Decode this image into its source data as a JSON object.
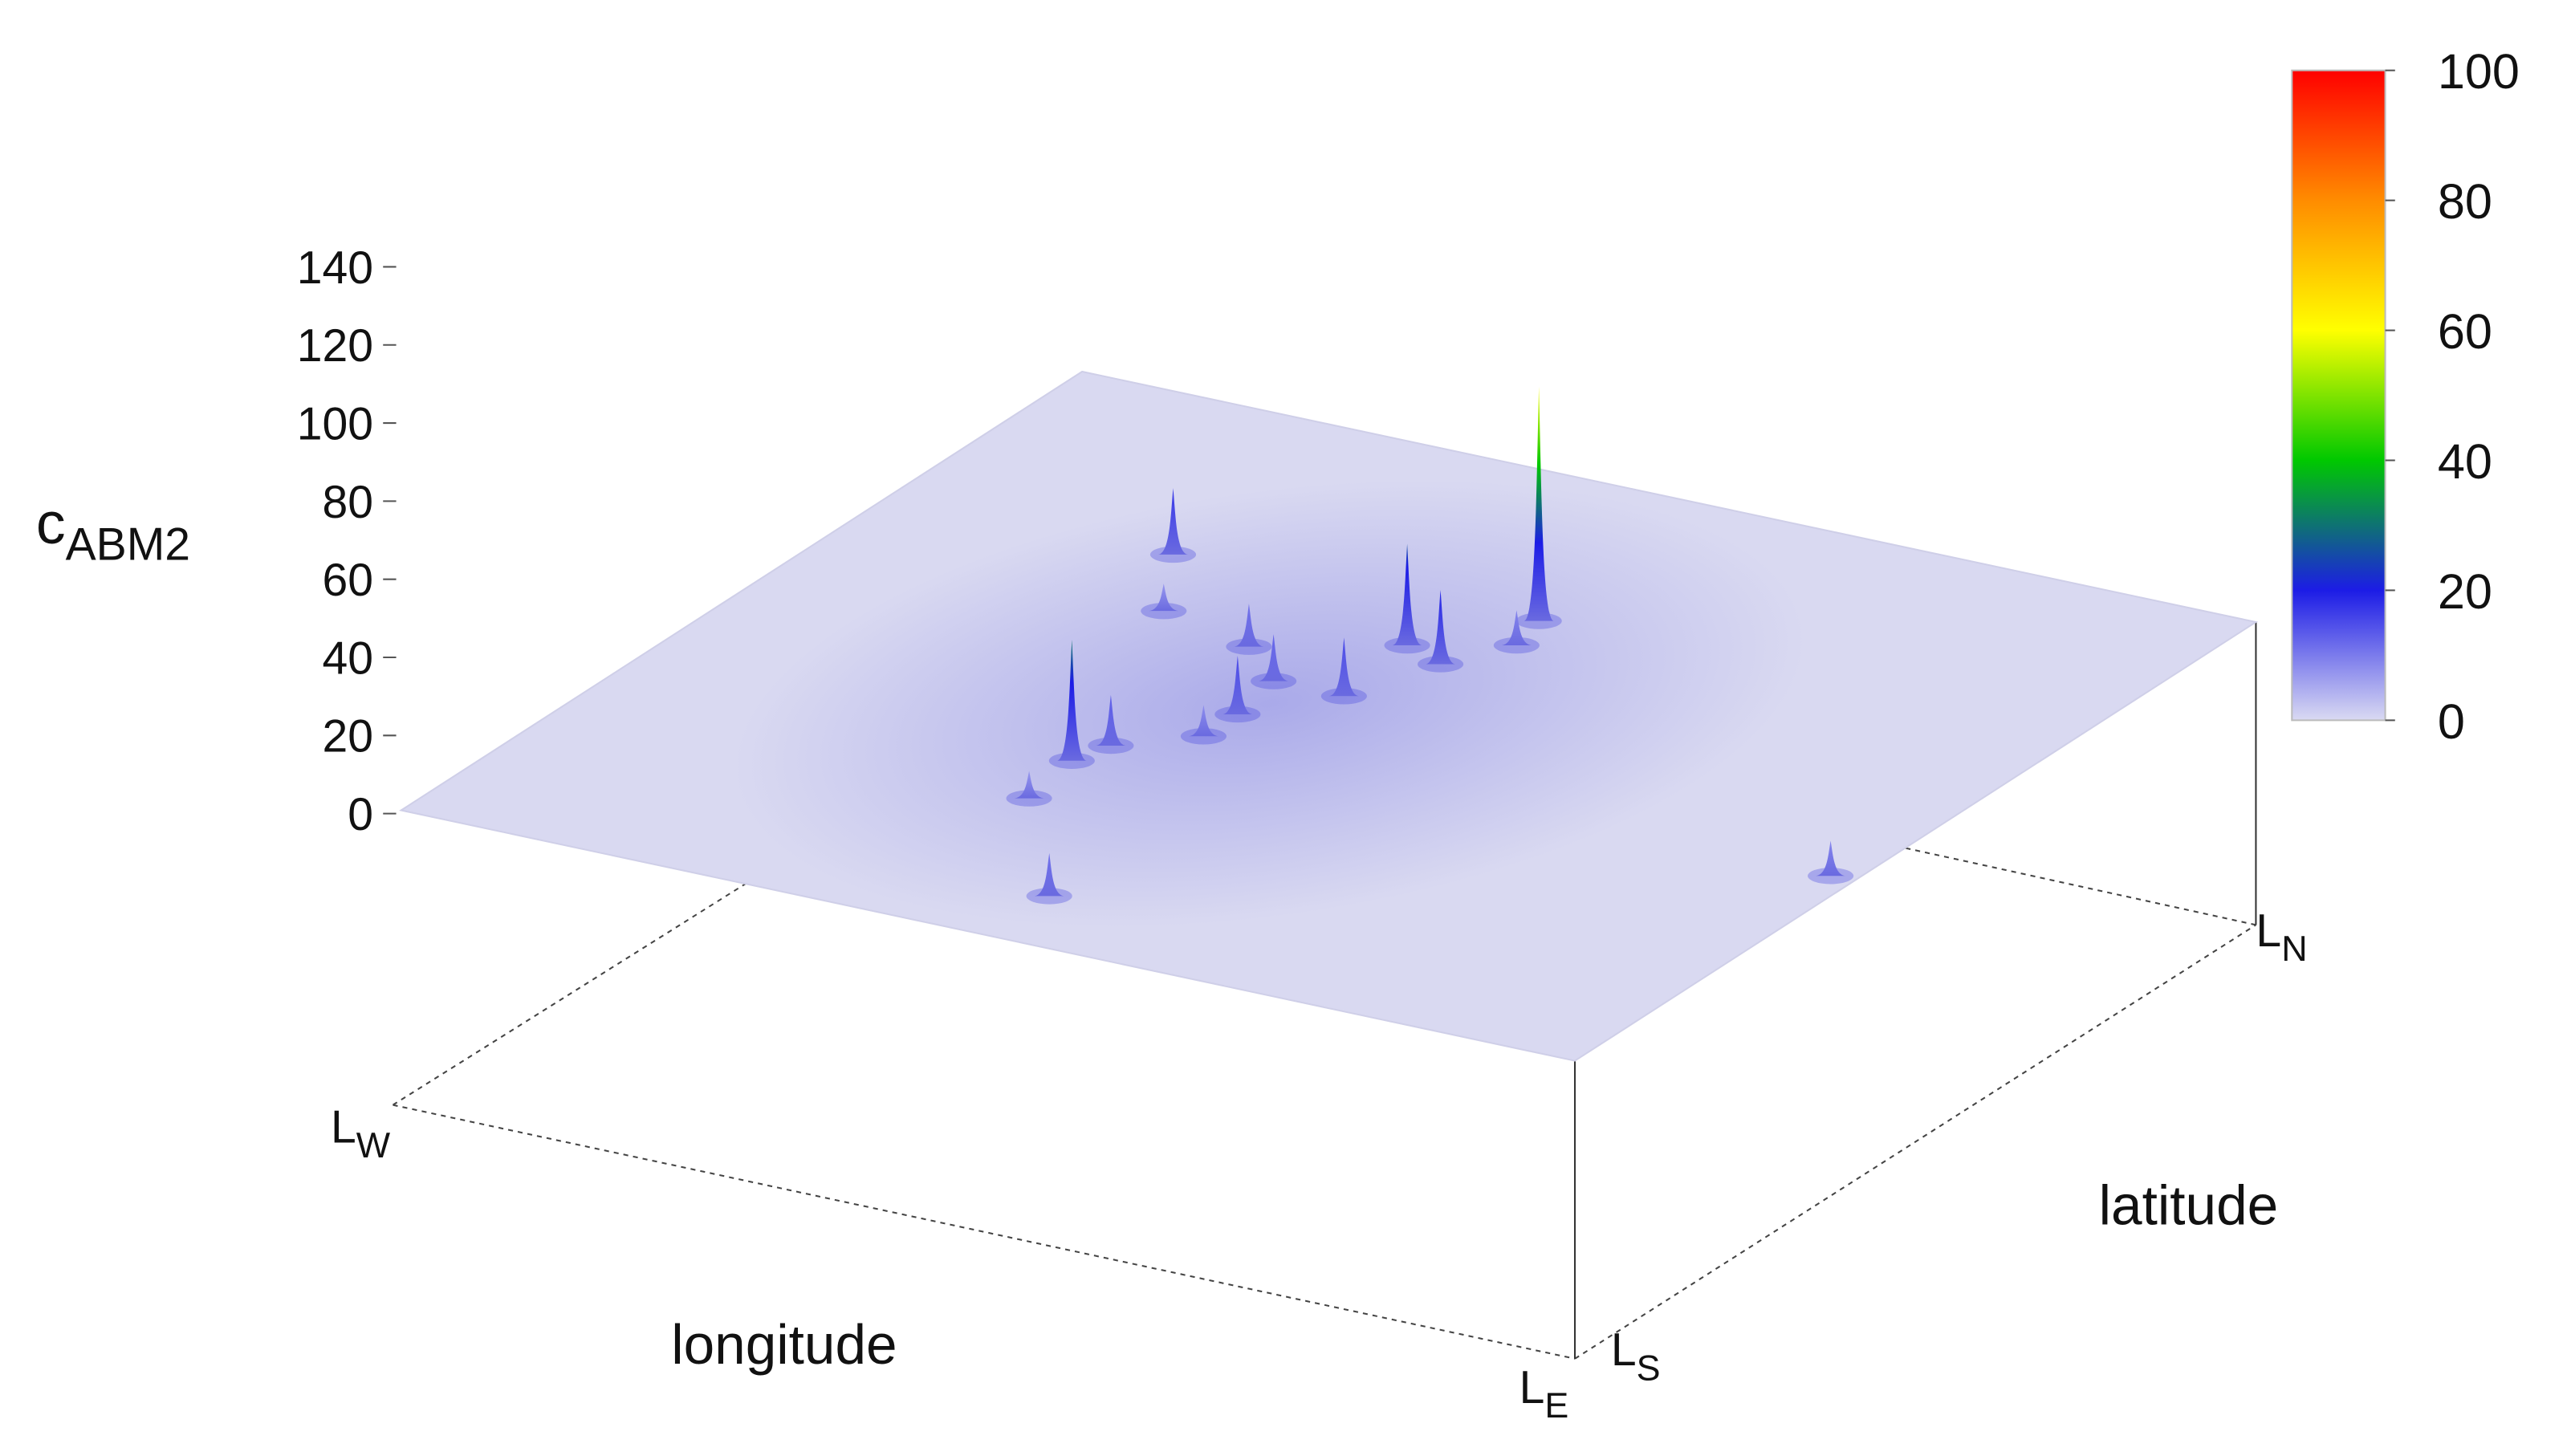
{
  "chart_data": {
    "type": "surface",
    "zlabel": "c",
    "zlabel_sub": "ABM2",
    "xlabel": "longitude",
    "ylabel": "latitude",
    "corner_labels": [
      {
        "main": "L",
        "sub": "W"
      },
      {
        "main": "L",
        "sub": "E"
      },
      {
        "main": "L",
        "sub": "S"
      },
      {
        "main": "L",
        "sub": "N"
      }
    ],
    "zlim": [
      0,
      140
    ],
    "zticks": [
      0,
      20,
      40,
      60,
      80,
      100,
      120,
      140
    ],
    "clim": [
      0,
      100
    ],
    "cticks": [
      0,
      20,
      40,
      60,
      80,
      100
    ],
    "colormap": [
      "#dadaf2",
      "#1c1ce6",
      "#00c800",
      "#ffff00",
      "#ff8c00",
      "#ff0000"
    ],
    "surface_color": "#d9d9f1",
    "series": [
      {
        "x": [
          0.54,
          0.48,
          0.52,
          0.38,
          0.24,
          0.39,
          0.49,
          0.38,
          0.43,
          0.44,
          0.44,
          0.55,
          0.5,
          0.98,
          0.39,
          0.29
        ],
        "y": [
          0.74,
          0.65,
          0.63,
          0.33,
          0.72,
          0.37,
          0.54,
          0.59,
          0.54,
          0.47,
          0.42,
          0.69,
          0.09,
          0.41,
          0.25,
          0.62
        ],
        "values": [
          60,
          26,
          19,
          31,
          17,
          13,
          15,
          11,
          12,
          15,
          8,
          9,
          11,
          9,
          7,
          7
        ]
      }
    ]
  }
}
